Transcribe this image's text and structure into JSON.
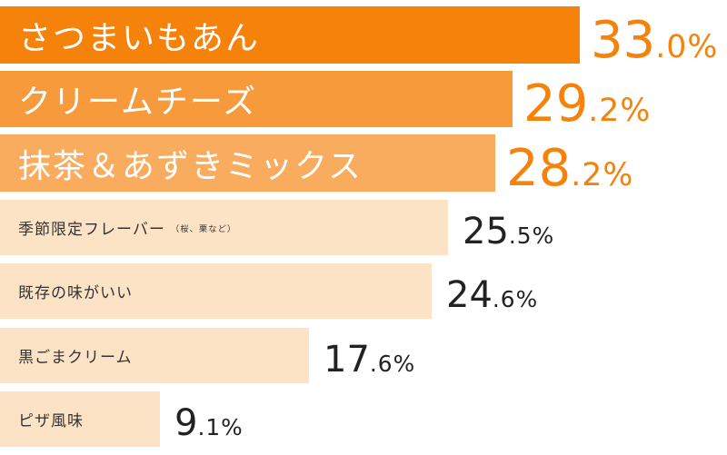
{
  "chart_data": {
    "type": "bar",
    "orientation": "horizontal",
    "categories": [
      "さつまいもあん",
      "クリームチーズ",
      "抹茶＆あずきミックス",
      "季節限定フレーバー",
      "既存の味がいい",
      "黒ごまクリーム",
      "ピザ風味"
    ],
    "category_notes": [
      "",
      "",
      "",
      "（桜、栗など）",
      "",
      "",
      ""
    ],
    "values": [
      33.0,
      29.2,
      28.2,
      25.5,
      24.6,
      17.6,
      9.1
    ],
    "value_labels": [
      "33.0%",
      "29.2%",
      "28.2%",
      "25.5%",
      "24.6%",
      "17.6%",
      "9.1%"
    ],
    "unit": "%",
    "xlim": [
      0,
      41.4
    ],
    "grid": false,
    "colors": {
      "top1": "#f5820a",
      "top2": "#f79a3c",
      "top3": "#f9ac5e",
      "rest": "#fde3c6",
      "highlight_text": "#f5820a",
      "label_light": "#ffffff",
      "label_dark": "#333333",
      "value_dark": "#222222"
    }
  }
}
